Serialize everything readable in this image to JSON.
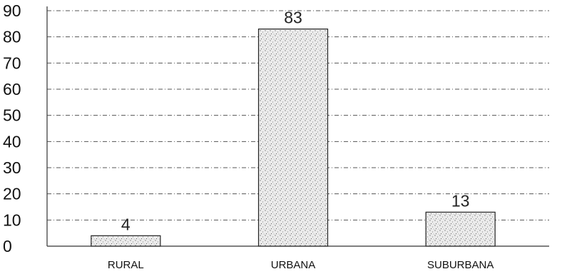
{
  "chart_data": {
    "type": "bar",
    "title": "",
    "xlabel": "",
    "ylabel": "",
    "categories": [
      "RURAL",
      "URBANA",
      "SUBURBANA"
    ],
    "values": [
      4,
      83,
      13
    ],
    "data_labels": [
      "4",
      "83",
      "13"
    ],
    "yticks": [
      "0",
      "10",
      "20",
      "30",
      "40",
      "50",
      "60",
      "70",
      "80",
      "90"
    ],
    "ylim": [
      0,
      90
    ],
    "grid": true,
    "legend": "none",
    "colors": {
      "bar_fill": "#e6e6e6",
      "bar_texture": "#7a7a7a",
      "grid": "#555555",
      "text": "#111111"
    }
  }
}
